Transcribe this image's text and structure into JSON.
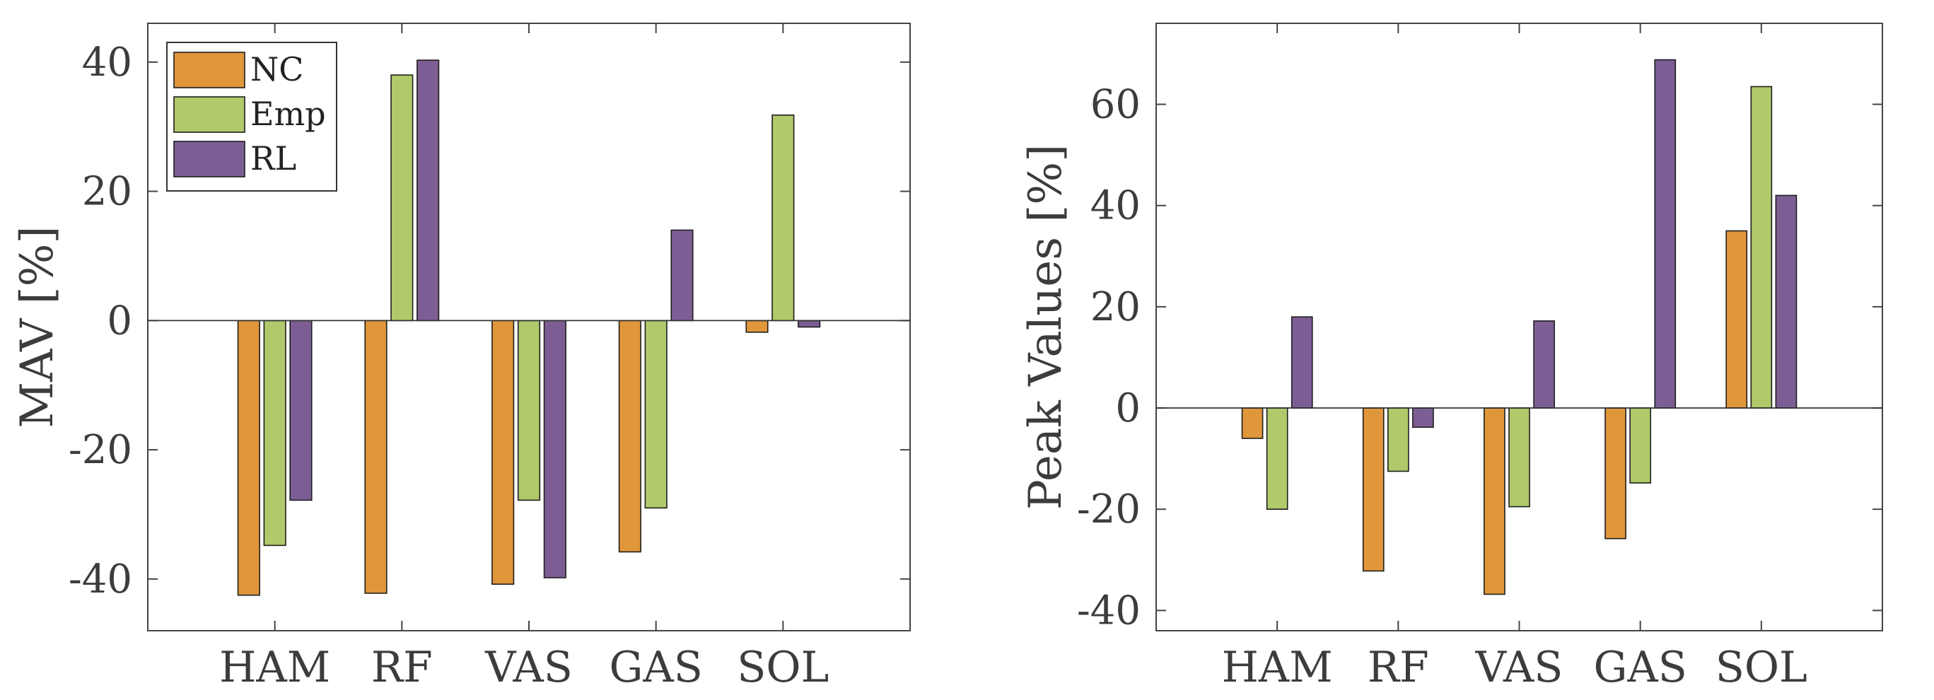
{
  "colors": {
    "NC": "#E0963A",
    "Emp": "#B0C96A",
    "RL": "#7C5E94",
    "axis": "#444444",
    "text": "#3c3c3c"
  },
  "chart_data": [
    {
      "type": "bar",
      "title": "",
      "xlabel": "",
      "ylabel": "MAV [%]",
      "ylim": [
        -48,
        46
      ],
      "yticks": [
        -40,
        -20,
        0,
        20,
        40
      ],
      "ytick_labels": [
        "-40",
        "-20",
        "0",
        "20",
        "40"
      ],
      "categories": [
        "HAM",
        "RF",
        "VAS",
        "GAS",
        "SOL"
      ],
      "series": [
        {
          "name": "NC",
          "values": [
            -42.5,
            -42.2,
            -40.8,
            -35.8,
            -1.8
          ]
        },
        {
          "name": "Emp",
          "values": [
            -34.8,
            38.0,
            -27.8,
            -29.0,
            31.8
          ]
        },
        {
          "name": "RL",
          "values": [
            -27.8,
            40.3,
            -39.8,
            14.0,
            -1.0
          ]
        }
      ],
      "legend": {
        "entries": [
          "NC",
          "Emp",
          "RL"
        ],
        "location": "top-left"
      }
    },
    {
      "type": "bar",
      "title": "",
      "xlabel": "",
      "ylabel": "Peak Values [%]",
      "ylim": [
        -44,
        76
      ],
      "yticks": [
        -40,
        -20,
        0,
        20,
        40,
        60
      ],
      "ytick_labels": [
        "-40",
        "-20",
        "0",
        "20",
        "40",
        "60"
      ],
      "categories": [
        "HAM",
        "RF",
        "VAS",
        "GAS",
        "SOL"
      ],
      "series": [
        {
          "name": "NC",
          "values": [
            -6.0,
            -32.2,
            -36.8,
            -25.8,
            35.0
          ]
        },
        {
          "name": "Emp",
          "values": [
            -20.0,
            -12.5,
            -19.5,
            -14.8,
            63.5
          ]
        },
        {
          "name": "RL",
          "values": [
            18.0,
            -3.8,
            17.2,
            68.8,
            42.0
          ]
        }
      ]
    }
  ]
}
